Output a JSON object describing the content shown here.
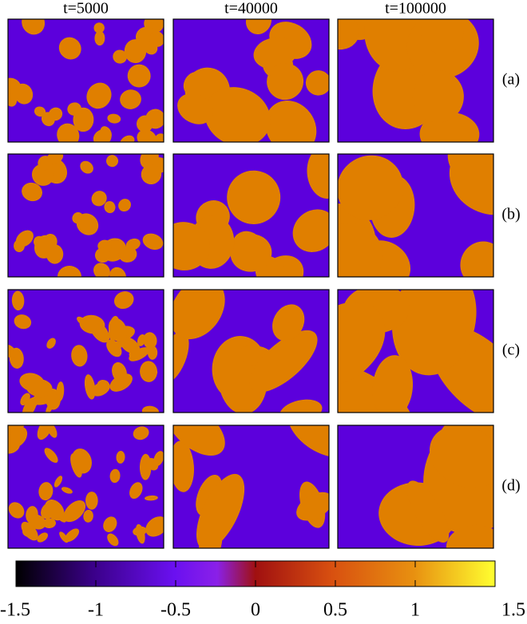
{
  "columns": [
    "t=5000",
    "t=40000",
    "t=100000"
  ],
  "rows": [
    "(a)",
    "(b)",
    "(c)",
    "(d)"
  ],
  "colorbar": {
    "range": [
      -1.5,
      1.5
    ],
    "ticks": [
      -1.5,
      -1,
      -0.5,
      0,
      0.5,
      1,
      1.5
    ]
  }
}
